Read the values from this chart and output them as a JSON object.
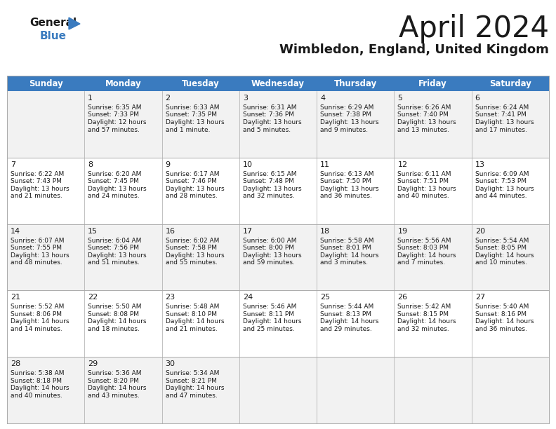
{
  "title": "April 2024",
  "subtitle": "Wimbledon, England, United Kingdom",
  "header_bg": "#3a7bbf",
  "header_text_color": "#ffffff",
  "row_bg_odd": "#f2f2f2",
  "row_bg_even": "#ffffff",
  "grid_line_color": "#aaaaaa",
  "day_headers": [
    "Sunday",
    "Monday",
    "Tuesday",
    "Wednesday",
    "Thursday",
    "Friday",
    "Saturday"
  ],
  "weeks": [
    [
      {
        "day": "",
        "sunrise": "",
        "sunset": "",
        "daylight": ""
      },
      {
        "day": "1",
        "sunrise": "6:35 AM",
        "sunset": "7:33 PM",
        "daylight_h": "12 hours",
        "daylight_m": "and 57 minutes."
      },
      {
        "day": "2",
        "sunrise": "6:33 AM",
        "sunset": "7:35 PM",
        "daylight_h": "13 hours",
        "daylight_m": "and 1 minute."
      },
      {
        "day": "3",
        "sunrise": "6:31 AM",
        "sunset": "7:36 PM",
        "daylight_h": "13 hours",
        "daylight_m": "and 5 minutes."
      },
      {
        "day": "4",
        "sunrise": "6:29 AM",
        "sunset": "7:38 PM",
        "daylight_h": "13 hours",
        "daylight_m": "and 9 minutes."
      },
      {
        "day": "5",
        "sunrise": "6:26 AM",
        "sunset": "7:40 PM",
        "daylight_h": "13 hours",
        "daylight_m": "and 13 minutes."
      },
      {
        "day": "6",
        "sunrise": "6:24 AM",
        "sunset": "7:41 PM",
        "daylight_h": "13 hours",
        "daylight_m": "and 17 minutes."
      }
    ],
    [
      {
        "day": "7",
        "sunrise": "6:22 AM",
        "sunset": "7:43 PM",
        "daylight_h": "13 hours",
        "daylight_m": "and 21 minutes."
      },
      {
        "day": "8",
        "sunrise": "6:20 AM",
        "sunset": "7:45 PM",
        "daylight_h": "13 hours",
        "daylight_m": "and 24 minutes."
      },
      {
        "day": "9",
        "sunrise": "6:17 AM",
        "sunset": "7:46 PM",
        "daylight_h": "13 hours",
        "daylight_m": "and 28 minutes."
      },
      {
        "day": "10",
        "sunrise": "6:15 AM",
        "sunset": "7:48 PM",
        "daylight_h": "13 hours",
        "daylight_m": "and 32 minutes."
      },
      {
        "day": "11",
        "sunrise": "6:13 AM",
        "sunset": "7:50 PM",
        "daylight_h": "13 hours",
        "daylight_m": "and 36 minutes."
      },
      {
        "day": "12",
        "sunrise": "6:11 AM",
        "sunset": "7:51 PM",
        "daylight_h": "13 hours",
        "daylight_m": "and 40 minutes."
      },
      {
        "day": "13",
        "sunrise": "6:09 AM",
        "sunset": "7:53 PM",
        "daylight_h": "13 hours",
        "daylight_m": "and 44 minutes."
      }
    ],
    [
      {
        "day": "14",
        "sunrise": "6:07 AM",
        "sunset": "7:55 PM",
        "daylight_h": "13 hours",
        "daylight_m": "and 48 minutes."
      },
      {
        "day": "15",
        "sunrise": "6:04 AM",
        "sunset": "7:56 PM",
        "daylight_h": "13 hours",
        "daylight_m": "and 51 minutes."
      },
      {
        "day": "16",
        "sunrise": "6:02 AM",
        "sunset": "7:58 PM",
        "daylight_h": "13 hours",
        "daylight_m": "and 55 minutes."
      },
      {
        "day": "17",
        "sunrise": "6:00 AM",
        "sunset": "8:00 PM",
        "daylight_h": "13 hours",
        "daylight_m": "and 59 minutes."
      },
      {
        "day": "18",
        "sunrise": "5:58 AM",
        "sunset": "8:01 PM",
        "daylight_h": "14 hours",
        "daylight_m": "and 3 minutes."
      },
      {
        "day": "19",
        "sunrise": "5:56 AM",
        "sunset": "8:03 PM",
        "daylight_h": "14 hours",
        "daylight_m": "and 7 minutes."
      },
      {
        "day": "20",
        "sunrise": "5:54 AM",
        "sunset": "8:05 PM",
        "daylight_h": "14 hours",
        "daylight_m": "and 10 minutes."
      }
    ],
    [
      {
        "day": "21",
        "sunrise": "5:52 AM",
        "sunset": "8:06 PM",
        "daylight_h": "14 hours",
        "daylight_m": "and 14 minutes."
      },
      {
        "day": "22",
        "sunrise": "5:50 AM",
        "sunset": "8:08 PM",
        "daylight_h": "14 hours",
        "daylight_m": "and 18 minutes."
      },
      {
        "day": "23",
        "sunrise": "5:48 AM",
        "sunset": "8:10 PM",
        "daylight_h": "14 hours",
        "daylight_m": "and 21 minutes."
      },
      {
        "day": "24",
        "sunrise": "5:46 AM",
        "sunset": "8:11 PM",
        "daylight_h": "14 hours",
        "daylight_m": "and 25 minutes."
      },
      {
        "day": "25",
        "sunrise": "5:44 AM",
        "sunset": "8:13 PM",
        "daylight_h": "14 hours",
        "daylight_m": "and 29 minutes."
      },
      {
        "day": "26",
        "sunrise": "5:42 AM",
        "sunset": "8:15 PM",
        "daylight_h": "14 hours",
        "daylight_m": "and 32 minutes."
      },
      {
        "day": "27",
        "sunrise": "5:40 AM",
        "sunset": "8:16 PM",
        "daylight_h": "14 hours",
        "daylight_m": "and 36 minutes."
      }
    ],
    [
      {
        "day": "28",
        "sunrise": "5:38 AM",
        "sunset": "8:18 PM",
        "daylight_h": "14 hours",
        "daylight_m": "and 40 minutes."
      },
      {
        "day": "29",
        "sunrise": "5:36 AM",
        "sunset": "8:20 PM",
        "daylight_h": "14 hours",
        "daylight_m": "and 43 minutes."
      },
      {
        "day": "30",
        "sunrise": "5:34 AM",
        "sunset": "8:21 PM",
        "daylight_h": "14 hours",
        "daylight_m": "and 47 minutes."
      },
      {
        "day": "",
        "sunrise": "",
        "sunset": "",
        "daylight_h": "",
        "daylight_m": ""
      },
      {
        "day": "",
        "sunrise": "",
        "sunset": "",
        "daylight_h": "",
        "daylight_m": ""
      },
      {
        "day": "",
        "sunrise": "",
        "sunset": "",
        "daylight_h": "",
        "daylight_m": ""
      },
      {
        "day": "",
        "sunrise": "",
        "sunset": "",
        "daylight_h": "",
        "daylight_m": ""
      }
    ]
  ]
}
